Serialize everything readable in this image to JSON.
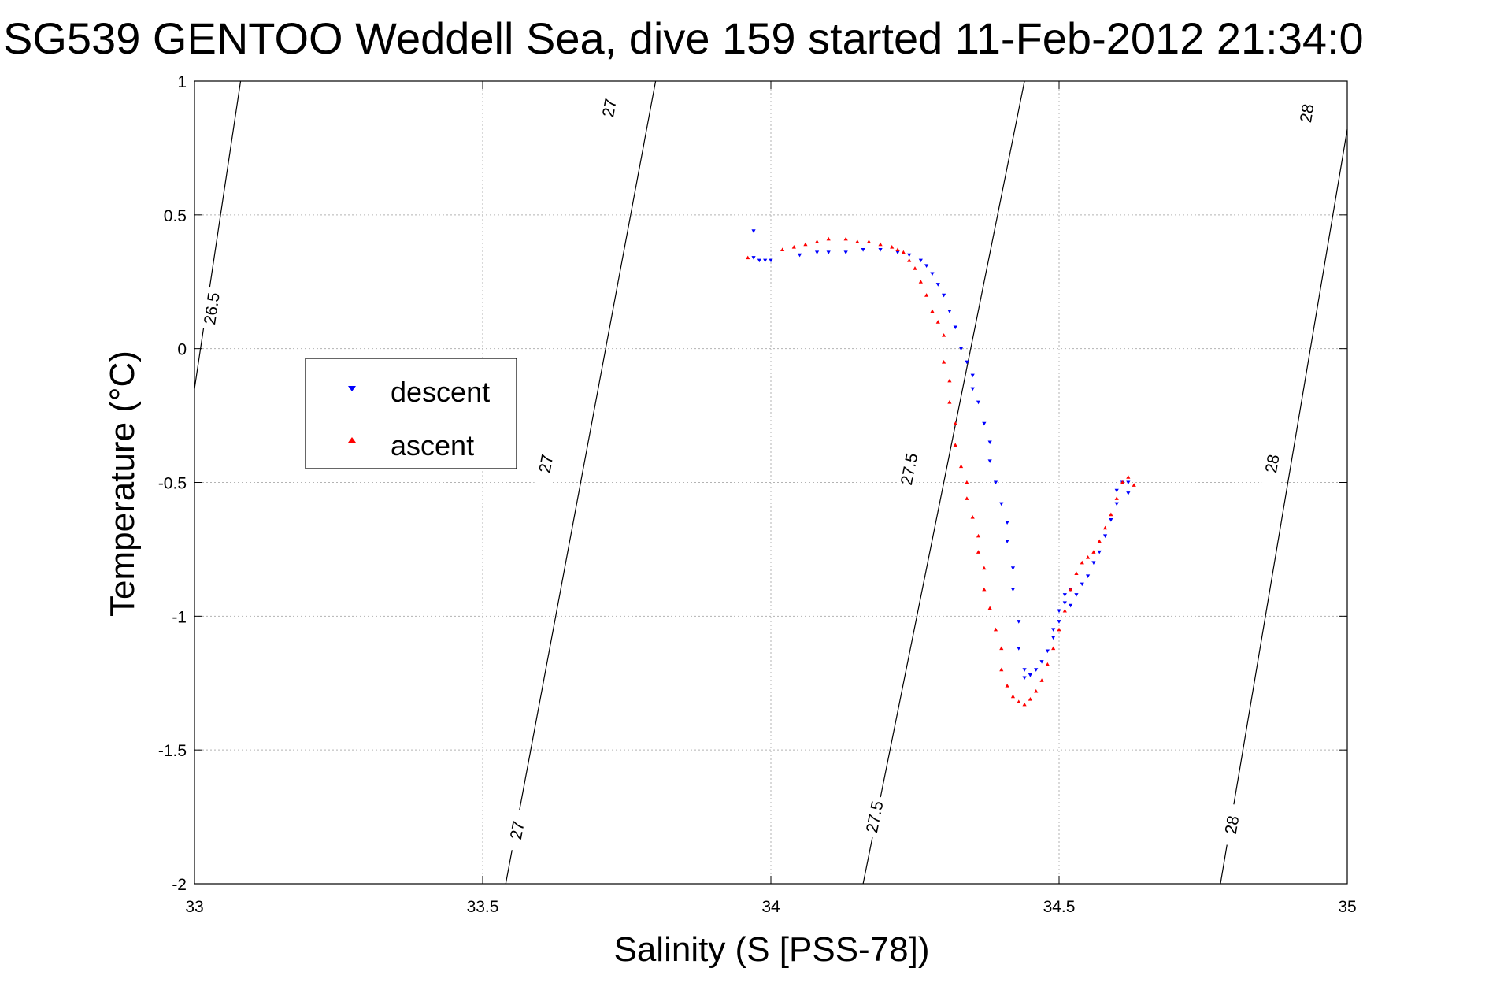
{
  "chart_data": {
    "type": "scatter",
    "title": "SG539 GENTOO Weddell Sea, dive 159 started 11-Feb-2012 21:34:0",
    "xlabel": "Salinity (S [PSS-78])",
    "ylabel": "Temperature (°C)",
    "xlim": [
      33,
      35
    ],
    "ylim": [
      -2,
      1
    ],
    "x_ticks": [
      33,
      33.5,
      34,
      34.5,
      35
    ],
    "x_tick_labels": [
      "33",
      "33.5",
      "34",
      "34.5",
      "35"
    ],
    "y_ticks": [
      -2,
      -1.5,
      -1,
      -0.5,
      0,
      0.5,
      1
    ],
    "y_tick_labels": [
      "-2",
      "-1.5",
      "-1",
      "-0.5",
      "0",
      "0.5",
      "1"
    ],
    "grid": true,
    "legend": {
      "placement": "left",
      "entries": [
        "descent",
        "ascent"
      ]
    },
    "colors": {
      "descent": "#0000ff",
      "ascent": "#ff0000",
      "contour": "#000000"
    },
    "contours": [
      {
        "label": "26.5",
        "points": [
          [
            33.0,
            -0.15
          ],
          [
            33.08,
            1.0
          ]
        ],
        "label_at": [
          [
            33.03,
            0.15
          ]
        ]
      },
      {
        "label": "27",
        "points": [
          [
            33.54,
            -2.0
          ],
          [
            33.8,
            1.0
          ]
        ],
        "label_at": [
          [
            33.56,
            -1.8
          ],
          [
            33.61,
            -0.43
          ],
          [
            33.72,
            0.9
          ]
        ]
      },
      {
        "label": "27.5",
        "points": [
          [
            34.16,
            -2.0
          ],
          [
            34.44,
            1.0
          ]
        ],
        "label_at": [
          [
            34.18,
            -1.75
          ],
          [
            34.24,
            -0.45
          ]
        ]
      },
      {
        "label": "28",
        "points": [
          [
            34.78,
            -2.0
          ],
          [
            35.0,
            0.82
          ]
        ],
        "label_at": [
          [
            34.8,
            -1.78
          ],
          [
            34.87,
            -0.43
          ],
          [
            34.93,
            0.88
          ]
        ]
      }
    ],
    "series": [
      {
        "name": "descent",
        "marker": "triangle-down",
        "points": [
          [
            33.97,
            0.44
          ],
          [
            33.97,
            0.34
          ],
          [
            33.98,
            0.33
          ],
          [
            33.99,
            0.33
          ],
          [
            34.0,
            0.33
          ],
          [
            34.05,
            0.35
          ],
          [
            34.08,
            0.36
          ],
          [
            34.1,
            0.36
          ],
          [
            34.13,
            0.36
          ],
          [
            34.16,
            0.37
          ],
          [
            34.19,
            0.37
          ],
          [
            34.22,
            0.36
          ],
          [
            34.24,
            0.35
          ],
          [
            34.26,
            0.33
          ],
          [
            34.27,
            0.31
          ],
          [
            34.28,
            0.28
          ],
          [
            34.29,
            0.24
          ],
          [
            34.3,
            0.2
          ],
          [
            34.31,
            0.14
          ],
          [
            34.32,
            0.08
          ],
          [
            34.33,
            0.0
          ],
          [
            34.34,
            -0.05
          ],
          [
            34.35,
            -0.1
          ],
          [
            34.35,
            -0.15
          ],
          [
            34.36,
            -0.2
          ],
          [
            34.37,
            -0.28
          ],
          [
            34.38,
            -0.35
          ],
          [
            34.38,
            -0.42
          ],
          [
            34.39,
            -0.5
          ],
          [
            34.4,
            -0.58
          ],
          [
            34.41,
            -0.65
          ],
          [
            34.41,
            -0.72
          ],
          [
            34.42,
            -0.82
          ],
          [
            34.42,
            -0.9
          ],
          [
            34.43,
            -1.02
          ],
          [
            34.43,
            -1.12
          ],
          [
            34.44,
            -1.2
          ],
          [
            34.44,
            -1.23
          ],
          [
            34.45,
            -1.22
          ],
          [
            34.46,
            -1.2
          ],
          [
            34.47,
            -1.17
          ],
          [
            34.48,
            -1.13
          ],
          [
            34.49,
            -1.08
          ],
          [
            34.49,
            -1.05
          ],
          [
            34.5,
            -1.02
          ],
          [
            34.5,
            -0.98
          ],
          [
            34.51,
            -0.95
          ],
          [
            34.51,
            -0.92
          ],
          [
            34.52,
            -0.9
          ],
          [
            34.52,
            -0.96
          ],
          [
            34.53,
            -0.92
          ],
          [
            34.54,
            -0.88
          ],
          [
            34.55,
            -0.85
          ],
          [
            34.56,
            -0.8
          ],
          [
            34.57,
            -0.76
          ],
          [
            34.58,
            -0.7
          ],
          [
            34.59,
            -0.64
          ],
          [
            34.6,
            -0.58
          ],
          [
            34.6,
            -0.53
          ],
          [
            34.61,
            -0.5
          ],
          [
            34.62,
            -0.5
          ],
          [
            34.62,
            -0.54
          ]
        ]
      },
      {
        "name": "ascent",
        "marker": "triangle-up",
        "points": [
          [
            33.96,
            0.34
          ],
          [
            34.02,
            0.37
          ],
          [
            34.04,
            0.38
          ],
          [
            34.06,
            0.39
          ],
          [
            34.08,
            0.4
          ],
          [
            34.1,
            0.41
          ],
          [
            34.13,
            0.41
          ],
          [
            34.15,
            0.4
          ],
          [
            34.17,
            0.4
          ],
          [
            34.19,
            0.39
          ],
          [
            34.21,
            0.38
          ],
          [
            34.22,
            0.37
          ],
          [
            34.23,
            0.36
          ],
          [
            34.24,
            0.33
          ],
          [
            34.25,
            0.3
          ],
          [
            34.26,
            0.25
          ],
          [
            34.27,
            0.2
          ],
          [
            34.28,
            0.14
          ],
          [
            34.29,
            0.1
          ],
          [
            34.3,
            0.05
          ],
          [
            34.3,
            -0.05
          ],
          [
            34.31,
            -0.12
          ],
          [
            34.31,
            -0.2
          ],
          [
            34.32,
            -0.28
          ],
          [
            34.32,
            -0.36
          ],
          [
            34.33,
            -0.44
          ],
          [
            34.34,
            -0.5
          ],
          [
            34.34,
            -0.56
          ],
          [
            34.35,
            -0.63
          ],
          [
            34.36,
            -0.7
          ],
          [
            34.36,
            -0.76
          ],
          [
            34.37,
            -0.82
          ],
          [
            34.37,
            -0.9
          ],
          [
            34.38,
            -0.97
          ],
          [
            34.39,
            -1.05
          ],
          [
            34.4,
            -1.12
          ],
          [
            34.4,
            -1.2
          ],
          [
            34.41,
            -1.26
          ],
          [
            34.42,
            -1.3
          ],
          [
            34.43,
            -1.32
          ],
          [
            34.44,
            -1.33
          ],
          [
            34.45,
            -1.31
          ],
          [
            34.46,
            -1.28
          ],
          [
            34.47,
            -1.24
          ],
          [
            34.48,
            -1.18
          ],
          [
            34.49,
            -1.12
          ],
          [
            34.5,
            -1.05
          ],
          [
            34.51,
            -0.98
          ],
          [
            34.52,
            -0.9
          ],
          [
            34.53,
            -0.84
          ],
          [
            34.54,
            -0.8
          ],
          [
            34.55,
            -0.78
          ],
          [
            34.56,
            -0.76
          ],
          [
            34.57,
            -0.72
          ],
          [
            34.58,
            -0.67
          ],
          [
            34.59,
            -0.62
          ],
          [
            34.6,
            -0.56
          ],
          [
            34.61,
            -0.5
          ],
          [
            34.62,
            -0.48
          ],
          [
            34.63,
            -0.51
          ]
        ]
      }
    ]
  }
}
